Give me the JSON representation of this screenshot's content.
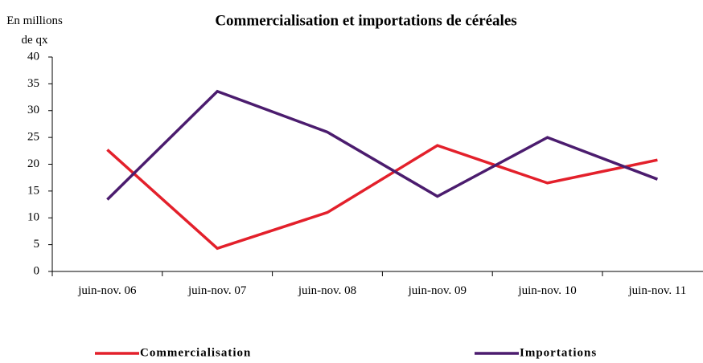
{
  "chart_data": {
    "type": "line",
    "title": "Commercialisation et importations de céréales",
    "y_label": "En millions de qx",
    "categories": [
      "juin-nov. 06",
      "juin-nov. 07",
      "juin-nov. 08",
      "juin-nov. 09",
      "juin-nov. 10",
      "juin-nov. 11"
    ],
    "series": [
      {
        "name": "Commercialisation",
        "color": "#e3202b",
        "values": [
          22.7,
          4.3,
          11,
          23.5,
          16.5,
          20.8
        ]
      },
      {
        "name": "Importations",
        "color": "#4b1c6e",
        "values": [
          13.4,
          33.6,
          26,
          14,
          25,
          17.2
        ]
      }
    ],
    "ylim": [
      0,
      40
    ],
    "yticks": [
      0,
      5,
      10,
      15,
      20,
      25,
      30,
      35,
      40
    ],
    "grid": false
  }
}
